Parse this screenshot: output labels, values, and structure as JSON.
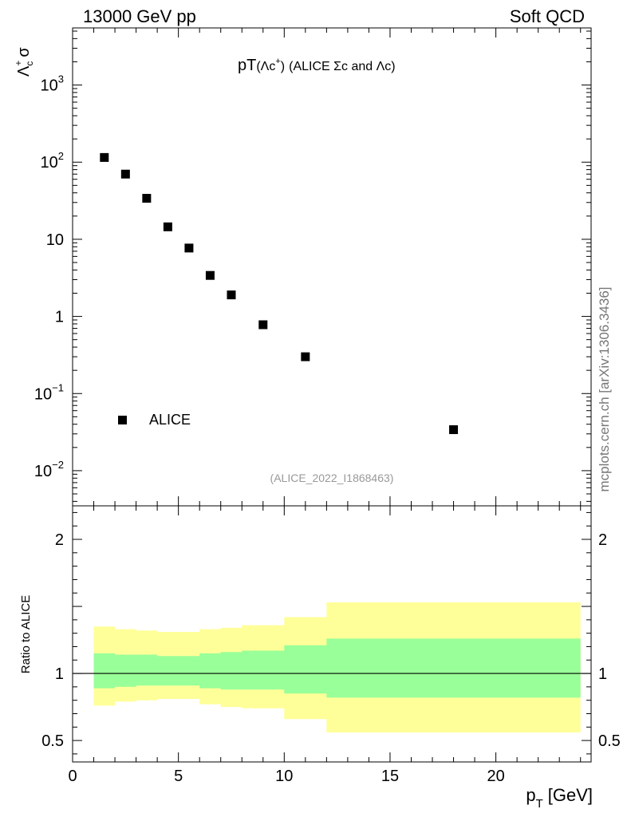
{
  "header": {
    "left": "13000 GeV pp",
    "right": "Soft QCD"
  },
  "side_label": "mcplots.cern.ch [arXiv:1306.3436]",
  "colors": {
    "band_inner": "#99ff99",
    "band_outer": "#ffff99",
    "marker": "#000000",
    "ref_line": "#000000",
    "analysis_id": "#999999"
  },
  "chart_data": [
    {
      "type": "scatter",
      "panel": "main",
      "title": "pT(Λc⁺) (ALICE Σc and Λc)",
      "title_main": "pT",
      "title_paren": "(Λc",
      "title_sup": "+",
      "title_close": ")",
      "title_rest": "(ALICE Σc and Λc)",
      "ylabel": "Λc+ σ",
      "ylabel_main": "Λ",
      "ylabel_sup": "+",
      "ylabel_sub": "c",
      "ylabel_sigma": "σ",
      "yscale": "log",
      "xlim": [
        0,
        24.5
      ],
      "ylim": [
        0.0035,
        5500
      ],
      "legend": {
        "position": "bottom-left",
        "entries": [
          "ALICE"
        ]
      },
      "analysis_id": "(ALICE_2022_I1868463)",
      "y_ticks": [
        {
          "value": 1000,
          "base": "10",
          "exp": "3"
        },
        {
          "value": 100,
          "base": "10",
          "exp": "2"
        },
        {
          "value": 10,
          "base": "10",
          "exp": ""
        },
        {
          "value": 1,
          "base": "1",
          "exp": ""
        },
        {
          "value": 0.1,
          "base": "10",
          "exp": "−1"
        },
        {
          "value": 0.01,
          "base": "10",
          "exp": "−2"
        }
      ],
      "series": [
        {
          "name": "ALICE",
          "x": [
            1.5,
            2.5,
            3.5,
            4.5,
            5.5,
            6.5,
            7.5,
            9.0,
            11.0,
            18.0
          ],
          "y": [
            115,
            70,
            34,
            14.5,
            7.7,
            3.4,
            1.9,
            0.78,
            0.3,
            0.034
          ]
        }
      ]
    },
    {
      "type": "area",
      "panel": "ratio",
      "ylabel": "Ratio to ALICE",
      "xlabel": "p_T [GeV]",
      "xlabel_main": "p",
      "xlabel_sub": "T",
      "xlabel_unit": "[GeV]",
      "xlim": [
        0,
        24.5
      ],
      "ylim": [
        0.34,
        2.25
      ],
      "x_tick_labels": [
        "0",
        "5",
        "10",
        "15",
        "20"
      ],
      "y_tick_labels": [
        {
          "value": 2,
          "label": "2"
        },
        {
          "value": 1,
          "label": "1"
        },
        {
          "value": 0.5,
          "label": "0.5"
        }
      ],
      "reference": 1,
      "bins": [
        1,
        2,
        3,
        4,
        5,
        6,
        7,
        8,
        10,
        12,
        24
      ],
      "inner_band": {
        "low": [
          0.89,
          0.9,
          0.91,
          0.91,
          0.91,
          0.89,
          0.88,
          0.88,
          0.85,
          0.82
        ],
        "high": [
          1.15,
          1.14,
          1.14,
          1.13,
          1.13,
          1.15,
          1.16,
          1.17,
          1.21,
          1.26
        ]
      },
      "outer_band": {
        "low": [
          0.76,
          0.79,
          0.8,
          0.81,
          0.81,
          0.77,
          0.75,
          0.74,
          0.66,
          0.56
        ],
        "high": [
          1.35,
          1.33,
          1.32,
          1.31,
          1.31,
          1.33,
          1.34,
          1.36,
          1.42,
          1.53
        ]
      }
    }
  ]
}
